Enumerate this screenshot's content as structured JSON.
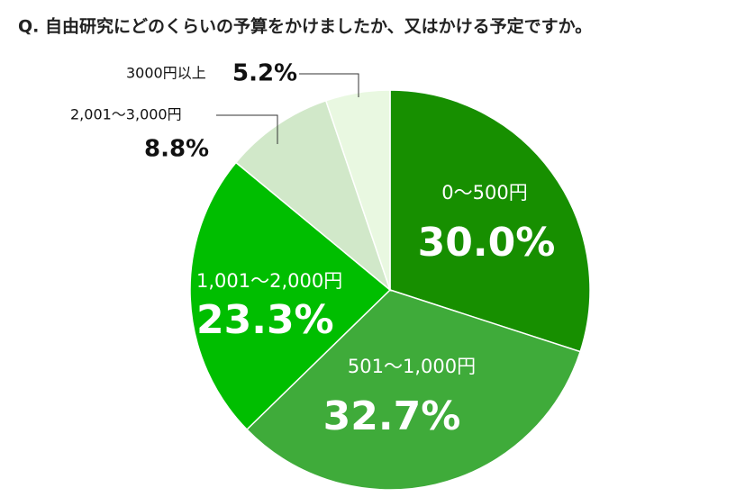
{
  "chart_data": {
    "type": "pie",
    "title": "Q. 自由研究にどのくらいの予算をかけましたか、又はかける予定ですか。",
    "categories": [
      "0〜500円",
      "501〜1,000円",
      "1,001〜2,000円",
      "2,001〜3,000円",
      "3000円以上"
    ],
    "values": [
      30.0,
      32.7,
      23.3,
      8.8,
      5.2
    ],
    "value_labels": [
      "30.0%",
      "32.7%",
      "23.3%",
      "8.8%",
      "5.2%"
    ],
    "colors": [
      "#178f00",
      "#3fab3a",
      "#00be00",
      "#d1e8c9",
      "#e9f8e1"
    ]
  }
}
